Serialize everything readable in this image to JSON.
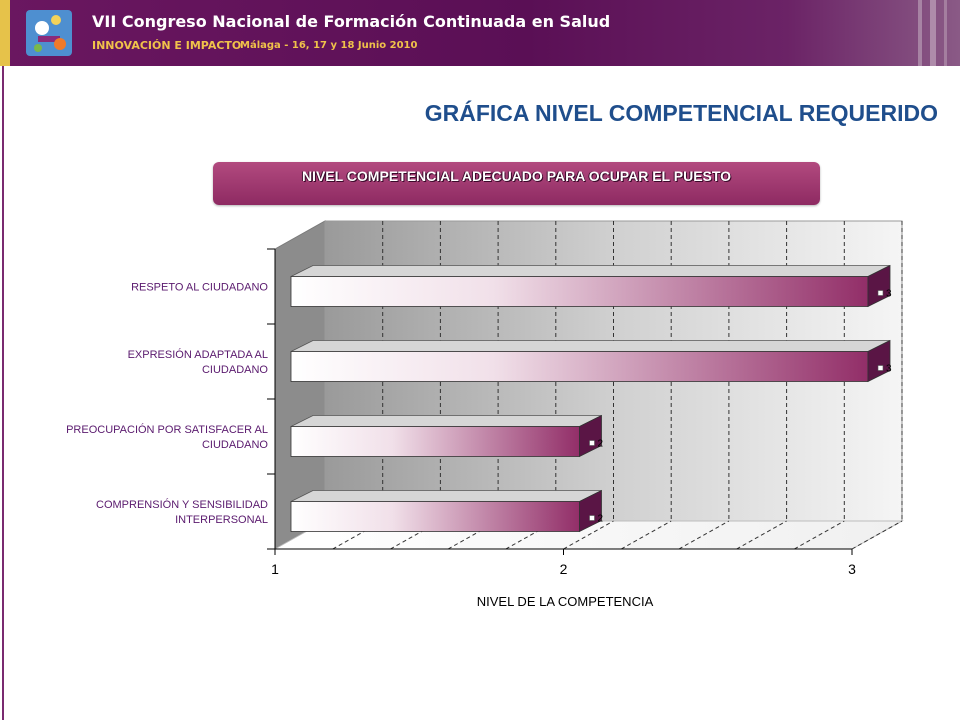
{
  "header": {
    "title": "VII Congreso Nacional de Formación Continuada en Salud",
    "subtitle": "INNOVACIÓN E IMPACTO",
    "location_date": "Málaga - 16, 17 y 18 Junio 2010"
  },
  "page": {
    "title": "GRÁFICA NIVEL COMPETENCIAL REQUERIDO"
  },
  "colors": {
    "banner": "#5a0f55",
    "title": "#1f4e8c",
    "bar": "#8e2a62"
  },
  "chart_data": {
    "type": "bar",
    "orientation": "horizontal",
    "title": "NIVEL COMPETENCIAL ADECUADO PARA OCUPAR EL PUESTO",
    "xlabel": "NIVEL DE LA COMPETENCIA",
    "ylabel": "",
    "xlim": [
      1,
      3
    ],
    "xticks": [
      "1",
      "2",
      "3"
    ],
    "grid": true,
    "categories": [
      [
        "RESPETO AL CIUDADANO"
      ],
      [
        "EXPRESIÓN ADAPTADA AL",
        "CIUDADANO"
      ],
      [
        "PREOCUPACIÓN POR SATISFACER AL",
        "CIUDADANO"
      ],
      [
        "COMPRENSIÓN Y SENSIBILIDAD",
        "INTERPERSONAL"
      ]
    ],
    "values": [
      3,
      3,
      2,
      2
    ],
    "data_labels": [
      "3",
      "3",
      "2",
      "2"
    ]
  }
}
